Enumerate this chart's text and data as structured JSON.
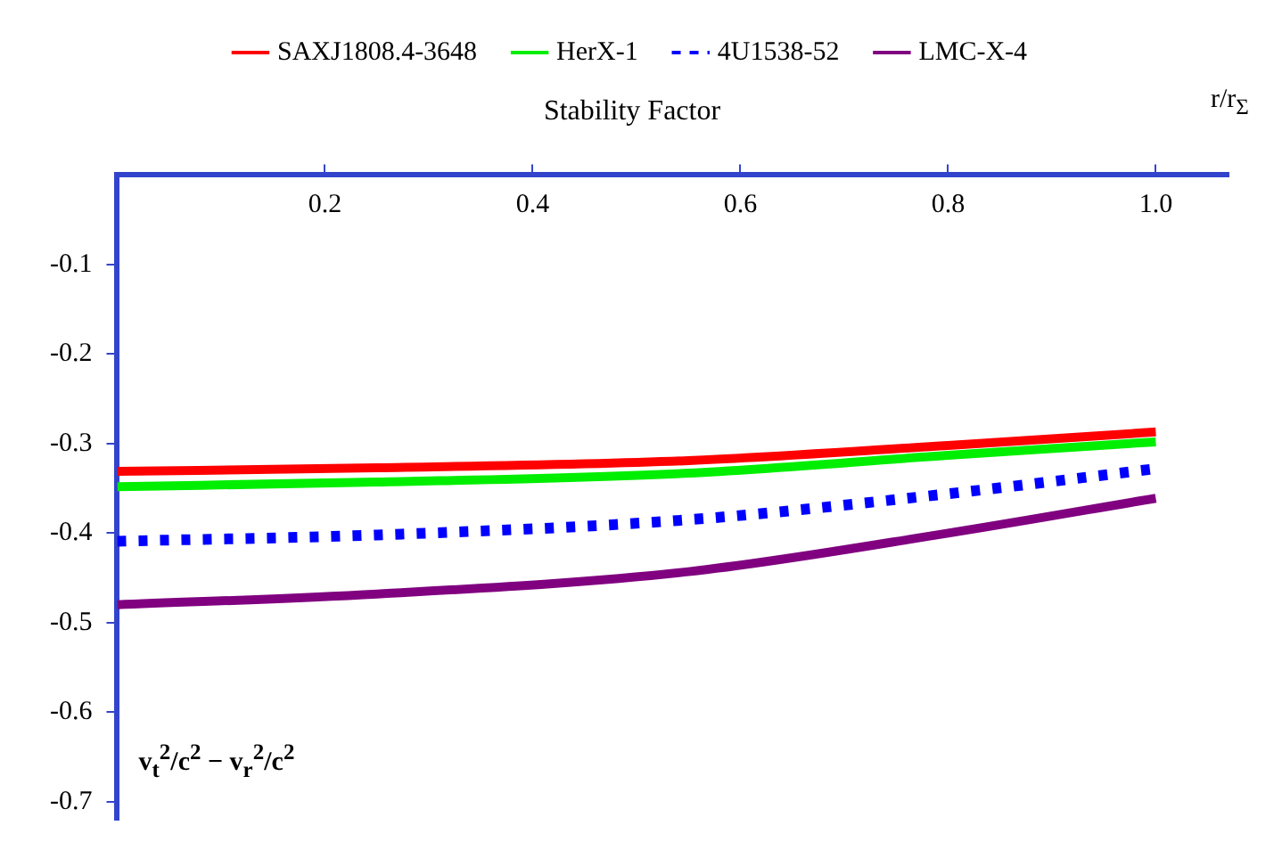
{
  "chart_data": {
    "type": "line",
    "title": "Stability Factor",
    "xlabel": "r/r$_{Σ}$",
    "ylabel": "v$_{t}$$^{2}$/c$^{2}$ − v$_{r}$$^{2}$/c$^{2}$",
    "x": [
      0,
      0.25,
      0.55,
      0.8,
      1.0
    ],
    "series": [
      {
        "name": "SAXJ1808.4-3648",
        "color": "#ff0000",
        "values": [
          -0.331,
          -0.327,
          -0.319,
          -0.302,
          -0.287
        ],
        "line_style": "solid"
      },
      {
        "name": "HerX-1",
        "color": "#00ee00",
        "values": [
          -0.348,
          -0.343,
          -0.333,
          -0.313,
          -0.298
        ],
        "line_style": "solid"
      },
      {
        "name": "4U1538-52",
        "color": "#0000ff",
        "values": [
          -0.409,
          -0.402,
          -0.385,
          -0.356,
          -0.328
        ],
        "line_style": "dotted"
      },
      {
        "name": "LMC-X-4",
        "color": "#800080",
        "values": [
          -0.48,
          -0.468,
          -0.443,
          -0.4,
          -0.361
        ],
        "line_style": "solid"
      }
    ],
    "xlim": [
      0,
      1.07
    ],
    "xticks": [
      0.2,
      0.4,
      0.6,
      0.8,
      {
        "value": 1.0,
        "label": "1.0"
      }
    ],
    "ylim": [
      -0.72,
      0
    ],
    "yticks": [
      -0.1,
      -0.2,
      -0.3,
      -0.4,
      -0.5,
      -0.6,
      -0.7
    ],
    "grid": false,
    "legend": "top",
    "marker": "none"
  }
}
